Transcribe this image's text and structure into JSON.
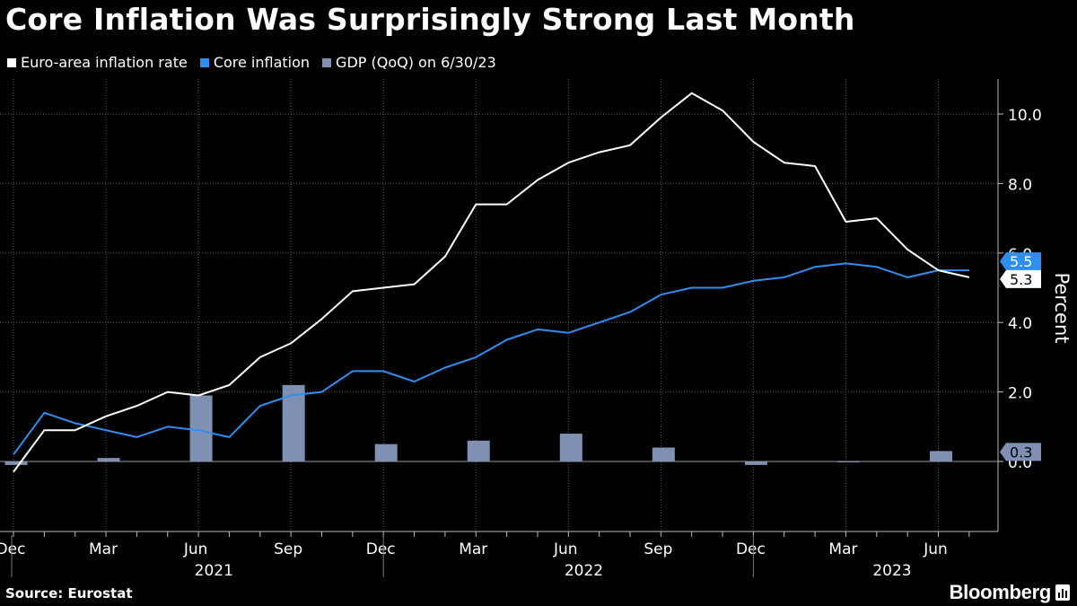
{
  "title": "Core Inflation Was Surprisingly Strong Last Month",
  "legend": [
    {
      "label": "Euro-area inflation rate",
      "color": "#ffffff"
    },
    {
      "label": "Core inflation",
      "color": "#2f8ef0"
    },
    {
      "label": "GDP (QoQ) on 6/30/23",
      "color": "#8090b3"
    }
  ],
  "source": "Source: Eurostat",
  "brand": "Bloomberg",
  "chart_data": {
    "type": "line",
    "title": "Core Inflation Was Surprisingly Strong Last Month",
    "ylabel": "Percent",
    "xlabel": "",
    "ylim": [
      -2,
      11
    ],
    "yticks": [
      0,
      2,
      4,
      6,
      8,
      10
    ],
    "ytick_labels": [
      "0.0",
      "2.0",
      "4.0",
      "6.0",
      "8.0",
      "10.0"
    ],
    "grid": true,
    "x": [
      "2020-12",
      "2021-01",
      "2021-02",
      "2021-03",
      "2021-04",
      "2021-05",
      "2021-06",
      "2021-07",
      "2021-08",
      "2021-09",
      "2021-10",
      "2021-11",
      "2021-12",
      "2022-01",
      "2022-02",
      "2022-03",
      "2022-04",
      "2022-05",
      "2022-06",
      "2022-07",
      "2022-08",
      "2022-09",
      "2022-10",
      "2022-11",
      "2022-12",
      "2023-01",
      "2023-02",
      "2023-03",
      "2023-04",
      "2023-05",
      "2023-06",
      "2023-07"
    ],
    "month_tick_labels": [
      {
        "index": 0,
        "label": "Dec"
      },
      {
        "index": 3,
        "label": "Mar"
      },
      {
        "index": 6,
        "label": "Jun"
      },
      {
        "index": 9,
        "label": "Sep"
      },
      {
        "index": 12,
        "label": "Dec"
      },
      {
        "index": 15,
        "label": "Mar"
      },
      {
        "index": 18,
        "label": "Jun"
      },
      {
        "index": 21,
        "label": "Sep"
      },
      {
        "index": 24,
        "label": "Dec"
      },
      {
        "index": 27,
        "label": "Mar"
      },
      {
        "index": 30,
        "label": "Jun"
      }
    ],
    "year_labels": [
      {
        "label": "2021",
        "center_index": 6.5
      },
      {
        "label": "2022",
        "center_index": 18.5
      },
      {
        "label": "2023",
        "center_index": 28.5
      }
    ],
    "year_separators": [
      12,
      24
    ],
    "series": [
      {
        "name": "Euro-area inflation rate",
        "kind": "line",
        "color": "#ffffff",
        "values": [
          -0.3,
          0.9,
          0.9,
          1.3,
          1.6,
          2.0,
          1.9,
          2.2,
          3.0,
          3.4,
          4.1,
          4.9,
          5.0,
          5.1,
          5.9,
          7.4,
          7.4,
          8.1,
          8.6,
          8.9,
          9.1,
          9.9,
          10.6,
          10.1,
          9.2,
          8.6,
          8.5,
          6.9,
          7.0,
          6.1,
          5.5,
          5.3
        ],
        "end_label": "5.3"
      },
      {
        "name": "Core inflation",
        "kind": "line",
        "color": "#2f8ef0",
        "values": [
          0.2,
          1.4,
          1.1,
          0.9,
          0.7,
          1.0,
          0.9,
          0.7,
          1.6,
          1.9,
          2.0,
          2.6,
          2.6,
          2.3,
          2.7,
          3.0,
          3.5,
          3.8,
          3.7,
          4.0,
          4.3,
          4.8,
          5.0,
          5.0,
          5.2,
          5.3,
          5.6,
          5.7,
          5.6,
          5.3,
          5.5,
          5.5
        ],
        "end_label": "5.5"
      },
      {
        "name": "GDP (QoQ) on 6/30/23",
        "kind": "bar",
        "color": "#8090b3",
        "points": [
          {
            "index": 0,
            "value": -0.1
          },
          {
            "index": 3,
            "value": 0.1
          },
          {
            "index": 6,
            "value": 1.9
          },
          {
            "index": 9,
            "value": 2.2
          },
          {
            "index": 12,
            "value": 0.5
          },
          {
            "index": 15,
            "value": 0.6
          },
          {
            "index": 18,
            "value": 0.8
          },
          {
            "index": 21,
            "value": 0.4
          },
          {
            "index": 24,
            "value": -0.1
          },
          {
            "index": 27,
            "value": 0.0
          },
          {
            "index": 30,
            "value": 0.3
          }
        ],
        "end_label": "0.3"
      }
    ]
  }
}
